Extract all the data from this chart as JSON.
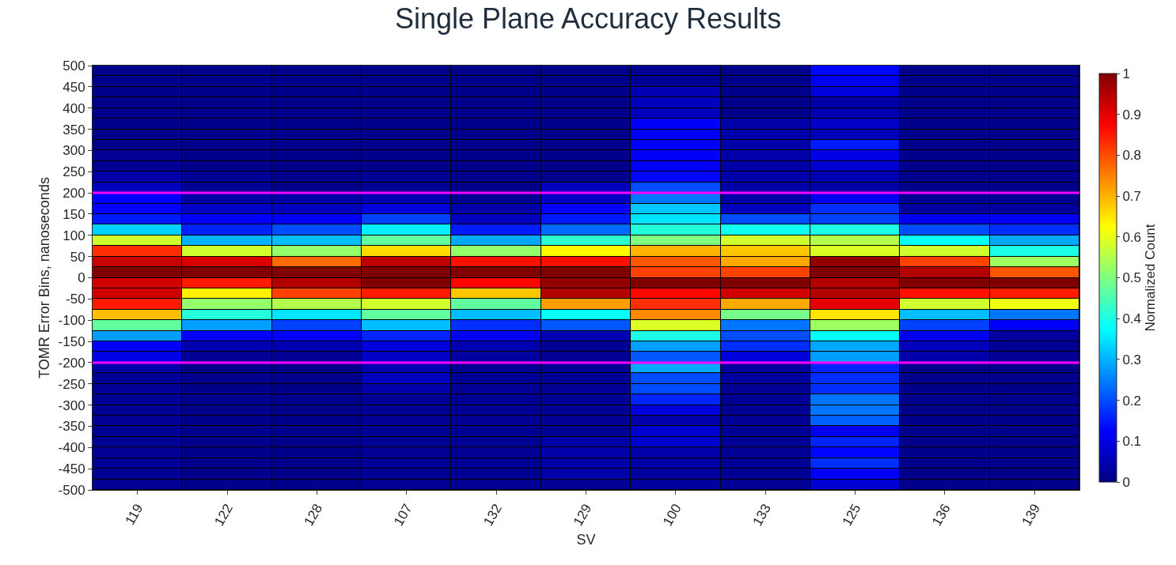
{
  "chart_data": {
    "type": "heatmap",
    "title": "Single Plane Accuracy Results",
    "xlabel": "SV",
    "ylabel": "TOMR Error Bins, nanoseconds",
    "clabel": "Normalized Count",
    "categories": [
      "119",
      "122",
      "128",
      "107",
      "132",
      "129",
      "100",
      "133",
      "125",
      "136",
      "139"
    ],
    "ylim": [
      -500,
      500
    ],
    "yticks": [
      500,
      450,
      400,
      350,
      300,
      250,
      200,
      150,
      100,
      50,
      0,
      -50,
      -100,
      -150,
      -200,
      -250,
      -300,
      -350,
      -400,
      -450,
      -500
    ],
    "clim": [
      0,
      1
    ],
    "cticks": [
      0,
      0.1,
      0.2,
      0.3,
      0.4,
      0.5,
      0.6,
      0.7,
      0.8,
      0.9,
      1
    ],
    "ref_lines": [
      {
        "axis": "y",
        "value": 200,
        "color": "#ff00ff"
      },
      {
        "axis": "y",
        "value": -200,
        "color": "#ff00ff"
      }
    ],
    "cells": [
      [
        0.01,
        0.01,
        0.01,
        0.01,
        0.01,
        0.01,
        0.02,
        0.01,
        0.13,
        0.01,
        0.01
      ],
      [
        0.01,
        0.01,
        0.01,
        0.01,
        0.01,
        0.01,
        0.02,
        0.01,
        0.11,
        0.01,
        0.01
      ],
      [
        0.01,
        0.01,
        0.01,
        0.01,
        0.01,
        0.01,
        0.05,
        0.01,
        0.09,
        0.01,
        0.01
      ],
      [
        0.01,
        0.01,
        0.01,
        0.01,
        0.01,
        0.01,
        0.06,
        0.01,
        0.04,
        0.01,
        0.01
      ],
      [
        0.01,
        0.01,
        0.01,
        0.01,
        0.01,
        0.01,
        0.06,
        0.01,
        0.05,
        0.01,
        0.01
      ],
      [
        0.01,
        0.01,
        0.01,
        0.01,
        0.01,
        0.01,
        0.12,
        0.04,
        0.07,
        0.01,
        0.01
      ],
      [
        0.01,
        0.01,
        0.01,
        0.01,
        0.01,
        0.01,
        0.12,
        0.04,
        0.06,
        0.01,
        0.01
      ],
      [
        0.01,
        0.01,
        0.01,
        0.01,
        0.01,
        0.01,
        0.12,
        0.04,
        0.15,
        0.01,
        0.01
      ],
      [
        0.02,
        0.01,
        0.01,
        0.01,
        0.01,
        0.01,
        0.12,
        0.04,
        0.1,
        0.01,
        0.01
      ],
      [
        0.02,
        0.01,
        0.01,
        0.01,
        0.01,
        0.01,
        0.12,
        0.04,
        0.08,
        0.01,
        0.01
      ],
      [
        0.04,
        0.02,
        0.01,
        0.02,
        0.01,
        0.01,
        0.13,
        0.04,
        0.05,
        0.01,
        0.01
      ],
      [
        0.06,
        0.02,
        0.01,
        0.02,
        0.01,
        0.06,
        0.2,
        0.04,
        0.04,
        0.01,
        0.01
      ],
      [
        0.12,
        0.04,
        0.04,
        0.05,
        0.02,
        0.07,
        0.24,
        0.04,
        0.11,
        0.02,
        0.02
      ],
      [
        0.12,
        0.07,
        0.06,
        0.09,
        0.04,
        0.12,
        0.32,
        0.06,
        0.17,
        0.03,
        0.03
      ],
      [
        0.15,
        0.12,
        0.12,
        0.19,
        0.06,
        0.15,
        0.35,
        0.2,
        0.19,
        0.11,
        0.12
      ],
      [
        0.33,
        0.16,
        0.2,
        0.36,
        0.15,
        0.23,
        0.41,
        0.39,
        0.4,
        0.2,
        0.17
      ],
      [
        0.58,
        0.3,
        0.31,
        0.47,
        0.29,
        0.42,
        0.5,
        0.58,
        0.55,
        0.38,
        0.29
      ],
      [
        0.83,
        0.58,
        0.52,
        0.66,
        0.52,
        0.63,
        0.7,
        0.68,
        0.59,
        0.58,
        0.4
      ],
      [
        0.93,
        0.91,
        0.77,
        0.94,
        0.86,
        0.86,
        0.79,
        0.71,
        0.98,
        0.81,
        0.53
      ],
      [
        1,
        1,
        1,
        1,
        1,
        1,
        0.81,
        0.81,
        1,
        0.95,
        0.79
      ],
      [
        0.92,
        0.85,
        0.95,
        1,
        0.87,
        0.98,
        1,
        1,
        0.95,
        1,
        1
      ],
      [
        0.92,
        0.64,
        0.81,
        0.85,
        0.68,
        0.95,
        0.87,
        0.92,
        0.95,
        0.86,
        0.85
      ],
      [
        0.85,
        0.52,
        0.55,
        0.58,
        0.47,
        0.72,
        0.83,
        0.71,
        0.9,
        0.58,
        0.61
      ],
      [
        0.69,
        0.41,
        0.35,
        0.47,
        0.31,
        0.38,
        0.74,
        0.49,
        0.65,
        0.31,
        0.24
      ],
      [
        0.47,
        0.28,
        0.19,
        0.31,
        0.17,
        0.21,
        0.59,
        0.24,
        0.53,
        0.19,
        0.12
      ],
      [
        0.28,
        0.12,
        0.12,
        0.16,
        0.11,
        0.05,
        0.4,
        0.2,
        0.38,
        0.11,
        0.03
      ],
      [
        0.12,
        0.05,
        0.05,
        0.09,
        0.05,
        0.02,
        0.28,
        0.17,
        0.29,
        0.06,
        0.02
      ],
      [
        0.1,
        0.02,
        0.02,
        0.07,
        0.03,
        0.02,
        0.21,
        0.09,
        0.28,
        0.04,
        0.02
      ],
      [
        0.04,
        0.01,
        0.01,
        0.05,
        0.02,
        0.02,
        0.29,
        0.03,
        0.16,
        0.01,
        0.01
      ],
      [
        0.02,
        0.01,
        0.01,
        0.06,
        0.02,
        0.02,
        0.2,
        0.03,
        0.17,
        0.01,
        0.01
      ],
      [
        0.02,
        0.01,
        0.01,
        0.04,
        0.02,
        0.02,
        0.2,
        0.02,
        0.17,
        0.01,
        0.01
      ],
      [
        0.02,
        0.01,
        0.01,
        0.02,
        0.02,
        0.02,
        0.16,
        0.02,
        0.24,
        0.01,
        0.01
      ],
      [
        0.02,
        0.01,
        0.01,
        0.02,
        0.02,
        0.02,
        0.09,
        0.02,
        0.24,
        0.01,
        0.01
      ],
      [
        0.02,
        0.01,
        0.01,
        0.02,
        0.02,
        0.02,
        0.04,
        0.02,
        0.22,
        0.01,
        0.01
      ],
      [
        0.02,
        0.01,
        0.01,
        0.02,
        0.02,
        0.02,
        0.08,
        0.02,
        0.11,
        0.01,
        0.01
      ],
      [
        0.02,
        0.01,
        0.01,
        0.02,
        0.02,
        0.04,
        0.08,
        0.02,
        0.16,
        0.01,
        0.01
      ],
      [
        0.02,
        0.01,
        0.01,
        0.02,
        0.02,
        0.04,
        0.04,
        0.02,
        0.13,
        0.01,
        0.01
      ],
      [
        0.02,
        0.01,
        0.01,
        0.02,
        0.02,
        0.04,
        0.04,
        0.02,
        0.17,
        0.01,
        0.01
      ],
      [
        0.02,
        0.01,
        0.01,
        0.02,
        0.02,
        0.04,
        0.03,
        0.02,
        0.12,
        0.01,
        0.01
      ],
      [
        0.02,
        0.01,
        0.01,
        0.02,
        0.02,
        0.02,
        0.03,
        0.02,
        0.08,
        0.01,
        0.01
      ]
    ]
  }
}
